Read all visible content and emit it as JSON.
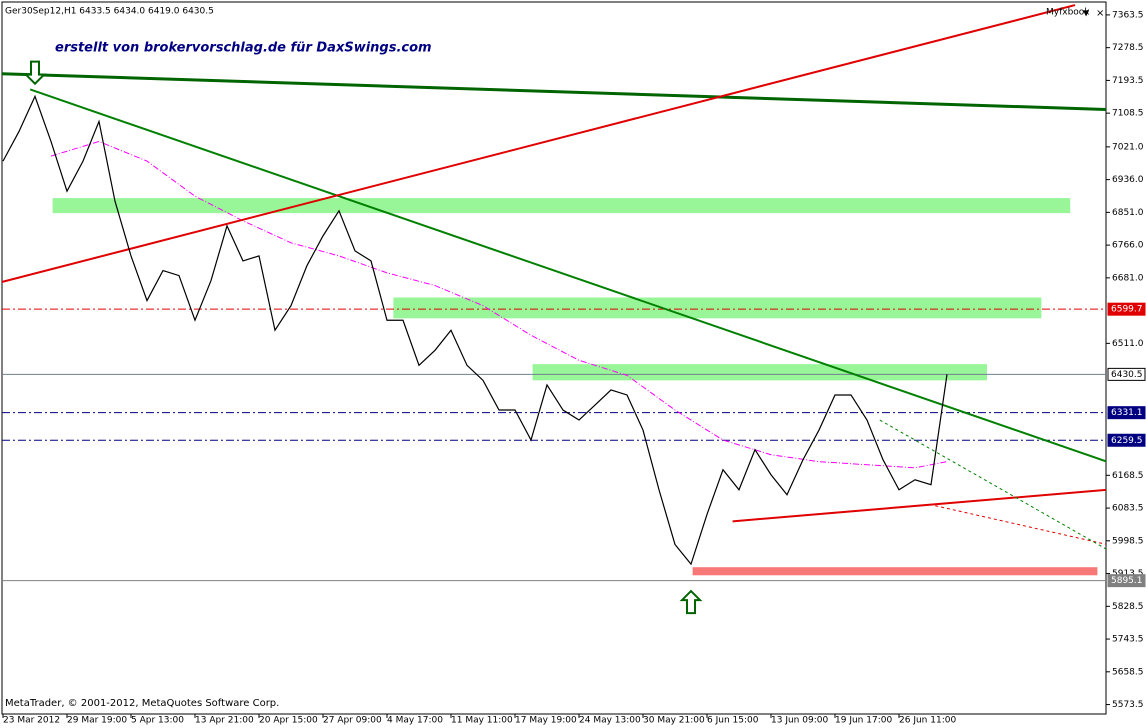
{
  "chart_data": {
    "type": "line",
    "title": "Ger30Sep12,H1  6433.5 6434.0 6419.0 6430.5",
    "annotation": "erstellt von brokervorschlag.de für DaxSwings.com",
    "brand": "Myfxbook",
    "footer": "MetaTrader, © 2001-2012, MetaQuotes Software Corp.",
    "categories": [
      "23 Mar 2012",
      null,
      null,
      null,
      "29 Mar 19:00",
      null,
      null,
      null,
      "5 Apr 13:00",
      null,
      null,
      null,
      "13 Apr 21:00",
      null,
      null,
      null,
      "20 Apr 15:00",
      null,
      null,
      null,
      "27 Apr 09:00",
      null,
      null,
      null,
      "4 May 17:00",
      null,
      null,
      null,
      "11 May 11:00",
      null,
      null,
      null,
      "17 May 19:00",
      null,
      null,
      null,
      "24 May 13:00",
      null,
      null,
      null,
      "30 May 21:00",
      null,
      null,
      null,
      "6 Jun 15:00",
      null,
      null,
      null,
      "13 Jun 09:00",
      null,
      null,
      null,
      "19 Jun 17:00",
      null,
      null,
      null,
      "26 Jun 11:00",
      null,
      null,
      null,
      null,
      null,
      null,
      null,
      null,
      null,
      null,
      null,
      null,
      null
    ],
    "series": [
      {
        "color": "#000000",
        "values": [
          6984,
          7061,
          7152,
          7035,
          6906,
          6984,
          7087,
          6880,
          6738,
          6622,
          6700,
          6687,
          6571,
          6674,
          6816,
          6725,
          6738,
          6545,
          6609,
          6713,
          6790,
          6855,
          6751,
          6725,
          6571,
          6571,
          6454,
          6493,
          6545,
          6454,
          6415,
          6338,
          6338,
          6260,
          6403,
          6338,
          6312,
          6351,
          6390,
          6377,
          6286,
          6131,
          5989,
          5938,
          6067,
          6183,
          6131,
          6235,
          6170,
          6118,
          6209,
          6286,
          6377,
          6377,
          6312,
          6209,
          6131,
          6157,
          6144,
          6430.5,
          null,
          null,
          null,
          null,
          null,
          null,
          null,
          null,
          null,
          null
        ]
      }
    ],
    "moving_average": {
      "color": "#ff00ff",
      "x": [
        3,
        6,
        9,
        12,
        15,
        18,
        21,
        24,
        27,
        30,
        33,
        36,
        39,
        42,
        45,
        48,
        51,
        54,
        57,
        59
      ],
      "values": [
        6997,
        7035,
        6984,
        6893,
        6829,
        6772,
        6738,
        6694,
        6661,
        6609,
        6532,
        6467,
        6428,
        6338,
        6260,
        6222,
        6204,
        6196,
        6188,
        6204
      ]
    },
    "trendlines": [
      {
        "color": "#006400",
        "width": 3,
        "dash": false,
        "x": [
          -0.2,
          69
        ],
        "values": [
          7211,
          7118
        ]
      },
      {
        "color": "#008000",
        "width": 2,
        "dash": false,
        "x": [
          1.7,
          69
        ],
        "values": [
          7170,
          6204
        ]
      },
      {
        "color": "#e00000",
        "width": 2,
        "dash": false,
        "x": [
          -0.2,
          67
        ],
        "values": [
          6669,
          7389
        ]
      },
      {
        "color": "#e00000",
        "width": 2,
        "dash": false,
        "x": [
          45.6,
          69
        ],
        "values": [
          6049,
          6131
        ]
      },
      {
        "color": "#e00000",
        "width": 1,
        "dash": true,
        "x": [
          57.9,
          69
        ],
        "values": [
          6093,
          5989
        ]
      },
      {
        "color": "#008000",
        "width": 1,
        "dash": true,
        "x": [
          54.8,
          69
        ],
        "values": [
          6312,
          5976
        ]
      }
    ],
    "zones": [
      {
        "color": "#98f598",
        "x": [
          3.1,
          66.7
        ],
        "values": [
          6888,
          6849
        ]
      },
      {
        "color": "#98f598",
        "x": [
          24.4,
          64.9
        ],
        "values": [
          6630,
          6576
        ]
      },
      {
        "color": "#98f598",
        "x": [
          33.1,
          61.5
        ],
        "values": [
          6457,
          6415
        ]
      },
      {
        "color": "#f87878",
        "x": [
          43.1,
          68.4
        ],
        "values": [
          5930,
          5909
        ]
      }
    ],
    "arrows": [
      {
        "x": 2,
        "value": 7185,
        "dir": "down",
        "color": "#006400"
      },
      {
        "x": 43,
        "value": 5868,
        "dir": "up",
        "color": "#006400"
      }
    ],
    "hlines": [
      {
        "value": 6599.7,
        "color": "#e00000",
        "dash": true
      },
      {
        "value": 6430.5,
        "color": "#708090",
        "dash": false
      },
      {
        "value": 6331.1,
        "color": "#000080",
        "dash": true
      },
      {
        "value": 6259.5,
        "color": "#000080",
        "dash": true
      },
      {
        "value": 5895.1,
        "color": "#808080",
        "dash": false
      }
    ],
    "ylim": [
      5549,
      7397
    ],
    "yticks": [
      7363.5,
      7278.5,
      7193.5,
      7108.5,
      {
        "value": 7021,
        "label": "7021.0"
      },
      {
        "value": 6936,
        "label": "6936.0"
      },
      {
        "value": 6851,
        "label": "6851.0"
      },
      {
        "value": 6766,
        "label": "6766.0"
      },
      {
        "value": 6681,
        "label": "6681.0"
      },
      {
        "value": 6511,
        "label": "6511.0"
      },
      6168.5,
      6083.5,
      5998.5,
      5913.5,
      5828.5,
      5743.5,
      5658.5,
      5573.5
    ]
  }
}
